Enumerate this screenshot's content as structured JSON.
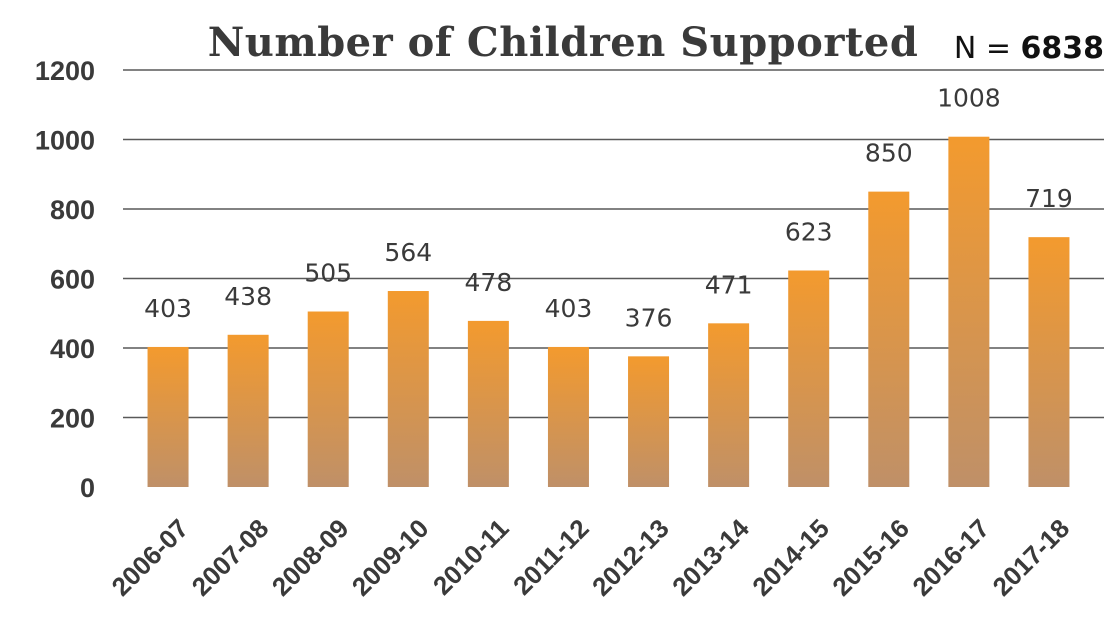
{
  "chart_data": {
    "type": "bar",
    "title": "Number of Children Supported",
    "annotation": {
      "prefix": "N = ",
      "value": "6838"
    },
    "categories": [
      "2006-07",
      "2007-08",
      "2008-09",
      "2009-10",
      "2010-11",
      "2011-12",
      "2012-13",
      "2013-14",
      "2014-15",
      "2015-16",
      "2016-17",
      "2017-18"
    ],
    "values": [
      403,
      438,
      505,
      564,
      478,
      403,
      376,
      471,
      623,
      850,
      1008,
      719
    ],
    "ylim": [
      0,
      1200
    ],
    "yticks": [
      0,
      200,
      400,
      600,
      800,
      1000,
      1200
    ],
    "grid": true,
    "colors": {
      "bar_top": "#f39a2e",
      "bar_bottom": "#bf9068",
      "text": "#3a3a3a",
      "grid": "#595959"
    }
  }
}
